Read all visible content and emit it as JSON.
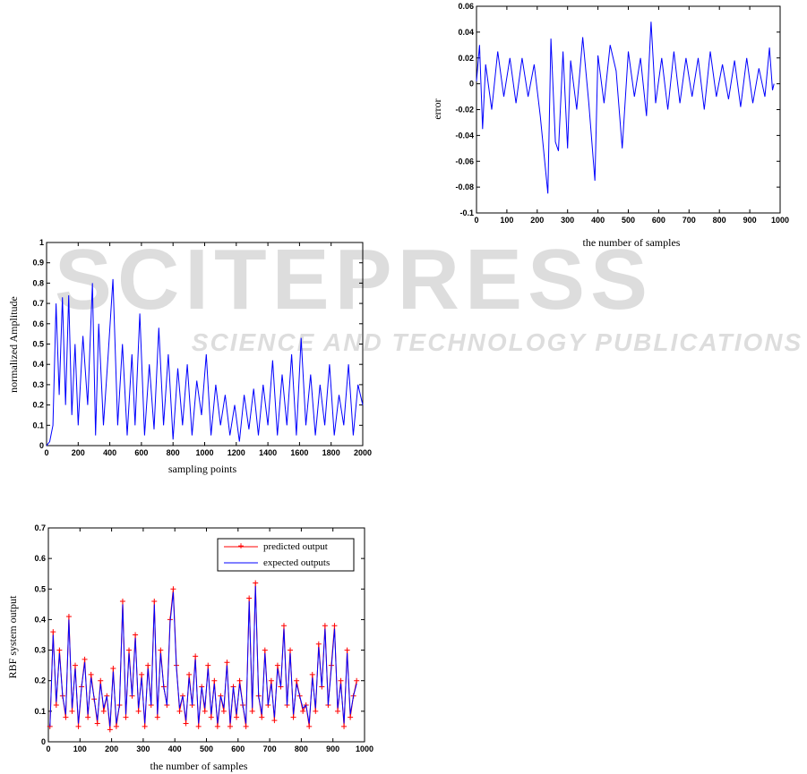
{
  "watermark": {
    "title": "SCITEPRESS",
    "subtitle": "SCIENCE AND TECHNOLOGY PUBLICATIONS"
  },
  "chart_data": [
    {
      "id": "error",
      "type": "line",
      "xlabel": "the number of samples",
      "ylabel": "error",
      "xlim": [
        0,
        1000
      ],
      "ylim": [
        -0.1,
        0.06
      ],
      "xticks": [
        0,
        100,
        200,
        300,
        400,
        500,
        600,
        700,
        800,
        900,
        1000
      ],
      "yticks": [
        -0.1,
        -0.08,
        -0.06,
        -0.04,
        -0.02,
        0,
        0.02,
        0.04,
        0.06
      ],
      "xtick_labels": [
        "0",
        "100",
        "200",
        "300",
        "400",
        "500",
        "600",
        "700",
        "800",
        "900",
        "1000"
      ],
      "ytick_labels": [
        "-0.1",
        "-0.08",
        "-0.06",
        "-0.04",
        "-0.02",
        "0",
        "0.02",
        "0.04",
        "0.06"
      ],
      "grid": false,
      "series": [
        {
          "color": "#0000ff",
          "x": [
            0,
            10,
            20,
            30,
            50,
            70,
            90,
            110,
            130,
            150,
            170,
            190,
            210,
            235,
            245,
            260,
            270,
            285,
            300,
            310,
            330,
            350,
            370,
            390,
            400,
            420,
            440,
            460,
            480,
            500,
            520,
            540,
            560,
            575,
            590,
            610,
            630,
            650,
            670,
            690,
            710,
            730,
            750,
            770,
            790,
            810,
            830,
            850,
            870,
            890,
            910,
            930,
            950,
            965,
            975,
            980
          ],
          "y": [
            0.002,
            0.03,
            -0.035,
            0.015,
            -0.02,
            0.025,
            -0.01,
            0.02,
            -0.015,
            0.02,
            -0.01,
            0.015,
            -0.025,
            -0.085,
            0.035,
            -0.045,
            -0.052,
            0.025,
            -0.05,
            0.018,
            -0.02,
            0.036,
            -0.015,
            -0.075,
            0.022,
            -0.015,
            0.03,
            0.01,
            -0.05,
            0.025,
            -0.01,
            0.02,
            -0.025,
            0.048,
            -0.015,
            0.02,
            -0.02,
            0.025,
            -0.015,
            0.02,
            -0.01,
            0.02,
            -0.02,
            0.025,
            -0.01,
            0.015,
            -0.012,
            0.018,
            -0.018,
            0.02,
            -0.015,
            0.012,
            -0.01,
            0.028,
            -0.005,
            0.0
          ]
        }
      ]
    },
    {
      "id": "amplitude",
      "type": "line",
      "xlabel": "sampling points",
      "ylabel": "normalized Amplitude",
      "xlim": [
        0,
        2000
      ],
      "ylim": [
        0,
        1
      ],
      "xticks": [
        0,
        200,
        400,
        600,
        800,
        1000,
        1200,
        1400,
        1600,
        1800,
        2000
      ],
      "yticks": [
        0,
        0.1,
        0.2,
        0.3,
        0.4,
        0.5,
        0.6,
        0.7,
        0.8,
        0.9,
        1
      ],
      "xtick_labels": [
        "0",
        "200",
        "400",
        "600",
        "800",
        "1000",
        "1200",
        "1400",
        "1600",
        "1800",
        "2000"
      ],
      "ytick_labels": [
        "0",
        "0.1",
        "0.2",
        "0.3",
        "0.4",
        "0.5",
        "0.6",
        "0.7",
        "0.8",
        "0.9",
        "1"
      ],
      "grid": false,
      "series": [
        {
          "color": "#0000ff",
          "x": [
            0,
            20,
            40,
            60,
            80,
            100,
            120,
            140,
            160,
            180,
            200,
            230,
            260,
            290,
            310,
            330,
            360,
            390,
            420,
            450,
            480,
            510,
            540,
            560,
            590,
            620,
            650,
            680,
            710,
            740,
            770,
            800,
            830,
            860,
            890,
            920,
            950,
            980,
            1010,
            1040,
            1070,
            1100,
            1130,
            1160,
            1190,
            1220,
            1250,
            1280,
            1310,
            1340,
            1370,
            1400,
            1430,
            1460,
            1490,
            1520,
            1550,
            1580,
            1610,
            1640,
            1670,
            1700,
            1730,
            1760,
            1790,
            1820,
            1850,
            1880,
            1910,
            1940,
            1970,
            2000
          ],
          "y": [
            0,
            0.02,
            0.1,
            0.7,
            0.25,
            0.73,
            0.2,
            0.74,
            0.15,
            0.5,
            0.1,
            0.54,
            0.2,
            0.8,
            0.05,
            0.6,
            0.1,
            0.45,
            0.82,
            0.1,
            0.5,
            0.05,
            0.45,
            0.1,
            0.65,
            0.05,
            0.4,
            0.08,
            0.58,
            0.1,
            0.45,
            0.03,
            0.38,
            0.1,
            0.4,
            0.05,
            0.32,
            0.15,
            0.45,
            0.05,
            0.3,
            0.1,
            0.25,
            0.05,
            0.2,
            0.02,
            0.25,
            0.08,
            0.28,
            0.05,
            0.3,
            0.1,
            0.42,
            0.05,
            0.35,
            0.1,
            0.45,
            0.05,
            0.53,
            0.1,
            0.35,
            0.05,
            0.3,
            0.1,
            0.4,
            0.05,
            0.25,
            0.1,
            0.4,
            0.05,
            0.3,
            0.2
          ]
        }
      ]
    },
    {
      "id": "rbf",
      "type": "line",
      "xlabel": "the number of samples",
      "ylabel": "RBF system output",
      "xlim": [
        0,
        1000
      ],
      "ylim": [
        0,
        0.7
      ],
      "xticks": [
        0,
        100,
        200,
        300,
        400,
        500,
        600,
        700,
        800,
        900,
        1000
      ],
      "yticks": [
        0,
        0.1,
        0.2,
        0.3,
        0.4,
        0.5,
        0.6,
        0.7
      ],
      "xtick_labels": [
        "0",
        "100",
        "200",
        "300",
        "400",
        "500",
        "600",
        "700",
        "800",
        "900",
        "1000"
      ],
      "ytick_labels": [
        "0",
        "0.1",
        "0.2",
        "0.3",
        "0.4",
        "0.5",
        "0.6",
        "0.7"
      ],
      "grid": false,
      "legend_position": "top-right",
      "series": [
        {
          "name": "predicted output",
          "color": "#ff0000",
          "marker": "+",
          "x": [
            5,
            15,
            25,
            35,
            45,
            55,
            65,
            75,
            85,
            95,
            105,
            115,
            125,
            135,
            145,
            155,
            165,
            175,
            185,
            195,
            205,
            215,
            225,
            235,
            245,
            255,
            265,
            275,
            285,
            295,
            305,
            315,
            325,
            335,
            345,
            355,
            365,
            375,
            385,
            395,
            405,
            415,
            425,
            435,
            445,
            455,
            465,
            475,
            485,
            495,
            505,
            515,
            525,
            535,
            545,
            555,
            565,
            575,
            585,
            595,
            605,
            615,
            625,
            635,
            645,
            655,
            665,
            675,
            685,
            695,
            705,
            715,
            725,
            735,
            745,
            755,
            765,
            775,
            785,
            795,
            805,
            815,
            825,
            835,
            845,
            855,
            865,
            875,
            885,
            895,
            905,
            915,
            925,
            935,
            945,
            955,
            965,
            975
          ],
          "y": [
            0.05,
            0.36,
            0.12,
            0.3,
            0.15,
            0.08,
            0.41,
            0.1,
            0.25,
            0.05,
            0.18,
            0.27,
            0.08,
            0.22,
            0.14,
            0.06,
            0.2,
            0.1,
            0.15,
            0.04,
            0.24,
            0.05,
            0.12,
            0.46,
            0.08,
            0.3,
            0.15,
            0.35,
            0.1,
            0.22,
            0.05,
            0.25,
            0.12,
            0.46,
            0.08,
            0.3,
            0.18,
            0.12,
            0.4,
            0.5,
            0.25,
            0.1,
            0.15,
            0.06,
            0.22,
            0.12,
            0.28,
            0.05,
            0.18,
            0.1,
            0.25,
            0.08,
            0.2,
            0.05,
            0.15,
            0.1,
            0.26,
            0.05,
            0.18,
            0.08,
            0.2,
            0.12,
            0.05,
            0.47,
            0.1,
            0.52,
            0.15,
            0.08,
            0.3,
            0.12,
            0.2,
            0.07,
            0.25,
            0.18,
            0.38,
            0.12,
            0.3,
            0.08,
            0.2,
            0.15,
            0.1,
            0.12,
            0.05,
            0.22,
            0.1,
            0.32,
            0.18,
            0.38,
            0.12,
            0.25,
            0.38,
            0.1,
            0.2,
            0.05,
            0.3,
            0.08,
            0.15,
            0.2
          ]
        },
        {
          "name": "expected outputs",
          "color": "#0000ff",
          "x": [
            5,
            15,
            25,
            35,
            45,
            55,
            65,
            75,
            85,
            95,
            105,
            115,
            125,
            135,
            145,
            155,
            165,
            175,
            185,
            195,
            205,
            215,
            225,
            235,
            245,
            255,
            265,
            275,
            285,
            295,
            305,
            315,
            325,
            335,
            345,
            355,
            365,
            375,
            385,
            395,
            405,
            415,
            425,
            435,
            445,
            455,
            465,
            475,
            485,
            495,
            505,
            515,
            525,
            535,
            545,
            555,
            565,
            575,
            585,
            595,
            605,
            615,
            625,
            635,
            645,
            655,
            665,
            675,
            685,
            695,
            705,
            715,
            725,
            735,
            745,
            755,
            765,
            775,
            785,
            795,
            805,
            815,
            825,
            835,
            845,
            855,
            865,
            875,
            885,
            895,
            905,
            915,
            925,
            935,
            945,
            955,
            965,
            975
          ],
          "y": [
            0.05,
            0.35,
            0.13,
            0.29,
            0.15,
            0.09,
            0.4,
            0.11,
            0.24,
            0.06,
            0.18,
            0.26,
            0.09,
            0.21,
            0.14,
            0.07,
            0.19,
            0.11,
            0.15,
            0.05,
            0.23,
            0.06,
            0.12,
            0.45,
            0.09,
            0.29,
            0.15,
            0.34,
            0.11,
            0.21,
            0.06,
            0.24,
            0.12,
            0.45,
            0.09,
            0.29,
            0.18,
            0.12,
            0.39,
            0.49,
            0.24,
            0.11,
            0.15,
            0.07,
            0.21,
            0.12,
            0.27,
            0.06,
            0.18,
            0.11,
            0.24,
            0.09,
            0.19,
            0.06,
            0.15,
            0.11,
            0.25,
            0.06,
            0.18,
            0.09,
            0.19,
            0.12,
            0.06,
            0.46,
            0.11,
            0.51,
            0.15,
            0.09,
            0.29,
            0.12,
            0.19,
            0.08,
            0.24,
            0.18,
            0.37,
            0.12,
            0.29,
            0.09,
            0.19,
            0.15,
            0.11,
            0.12,
            0.06,
            0.21,
            0.11,
            0.31,
            0.18,
            0.37,
            0.12,
            0.24,
            0.37,
            0.11,
            0.19,
            0.06,
            0.29,
            0.09,
            0.15,
            0.19
          ]
        }
      ]
    }
  ]
}
